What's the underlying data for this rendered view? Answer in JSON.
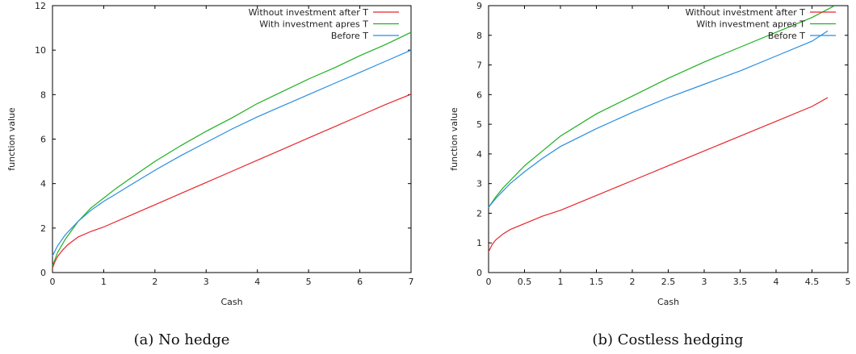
{
  "colors": {
    "red": "#e8262b",
    "green": "#21b021",
    "blue": "#2a8ee0"
  },
  "chart_data": [
    {
      "type": "line",
      "caption": "(a) No hedge",
      "xlabel": "Cash",
      "ylabel": "function value",
      "xlim": [
        0,
        7
      ],
      "ylim": [
        0,
        12
      ],
      "x_ticks": [
        "0",
        "1",
        "2",
        "3",
        "4",
        "5",
        "6",
        "7"
      ],
      "y_ticks": [
        "0",
        "2",
        "4",
        "6",
        "8",
        "10",
        "12"
      ],
      "legend": "top-right",
      "grid": false,
      "series": [
        {
          "name": "Without  investment after T",
          "color": "#e8262b",
          "x": [
            0,
            0.05,
            0.1,
            0.2,
            0.3,
            0.5,
            0.75,
            1,
            1.5,
            2,
            2.5,
            3,
            3.5,
            4,
            4.5,
            5,
            5.5,
            6,
            6.5,
            7
          ],
          "y": [
            0.2,
            0.5,
            0.72,
            1.02,
            1.25,
            1.6,
            1.85,
            2.05,
            2.55,
            3.05,
            3.55,
            4.05,
            4.55,
            5.05,
            5.55,
            6.05,
            6.55,
            7.05,
            7.55,
            8.02
          ]
        },
        {
          "name": "With investment apres T",
          "color": "#21b021",
          "x": [
            0,
            0.1,
            0.25,
            0.5,
            0.75,
            1,
            1.25,
            1.5,
            2,
            2.5,
            3,
            3.5,
            4,
            4.5,
            5,
            5.5,
            6,
            6.5,
            7
          ],
          "y": [
            0.3,
            0.9,
            1.5,
            2.3,
            2.9,
            3.35,
            3.8,
            4.2,
            5.0,
            5.7,
            6.35,
            6.95,
            7.6,
            8.15,
            8.7,
            9.2,
            9.75,
            10.25,
            10.8
          ]
        },
        {
          "name": "Before T",
          "color": "#2a8ee0",
          "x": [
            0,
            0.1,
            0.25,
            0.5,
            0.75,
            1,
            1.25,
            1.5,
            2,
            2.5,
            3,
            3.5,
            4,
            4.5,
            5,
            5.5,
            6,
            6.5,
            7
          ],
          "y": [
            0.75,
            1.2,
            1.7,
            2.3,
            2.8,
            3.2,
            3.55,
            3.9,
            4.6,
            5.25,
            5.85,
            6.45,
            7.0,
            7.5,
            8.0,
            8.5,
            9.0,
            9.5,
            10.0
          ]
        }
      ]
    },
    {
      "type": "line",
      "caption": "(b) Costless hedging",
      "xlabel": "Cash",
      "ylabel": "function value",
      "xlim": [
        0,
        5
      ],
      "ylim": [
        0,
        9
      ],
      "x_ticks": [
        "0",
        "0.5",
        "1",
        "1.5",
        "2",
        "2.5",
        "3",
        "3.5",
        "4",
        "4.5",
        "5"
      ],
      "y_ticks": [
        "0",
        "1",
        "2",
        "3",
        "4",
        "5",
        "6",
        "7",
        "8",
        "9"
      ],
      "legend": "top-right",
      "grid": false,
      "series": [
        {
          "name": "Without  investment after T",
          "color": "#e8262b",
          "x": [
            0,
            0.05,
            0.1,
            0.2,
            0.3,
            0.5,
            0.75,
            1,
            1.5,
            2,
            2.5,
            3,
            3.5,
            4,
            4.5,
            4.72
          ],
          "y": [
            0.7,
            0.95,
            1.1,
            1.3,
            1.45,
            1.65,
            1.9,
            2.1,
            2.6,
            3.1,
            3.6,
            4.1,
            4.6,
            5.1,
            5.6,
            5.9
          ]
        },
        {
          "name": "With investment apres T",
          "color": "#21b021",
          "x": [
            0,
            0.1,
            0.2,
            0.3,
            0.5,
            0.75,
            1,
            1.5,
            2,
            2.5,
            3,
            3.5,
            4,
            4.5,
            4.8
          ],
          "y": [
            2.2,
            2.55,
            2.85,
            3.1,
            3.6,
            4.1,
            4.6,
            5.35,
            5.95,
            6.55,
            7.1,
            7.6,
            8.1,
            8.6,
            8.98
          ]
        },
        {
          "name": "Before T",
          "color": "#2a8ee0",
          "x": [
            0,
            0.1,
            0.2,
            0.3,
            0.5,
            0.75,
            1,
            1.5,
            2,
            2.5,
            3,
            3.5,
            4,
            4.5,
            4.72
          ],
          "y": [
            2.2,
            2.5,
            2.75,
            3.0,
            3.4,
            3.85,
            4.25,
            4.85,
            5.4,
            5.9,
            6.35,
            6.8,
            7.3,
            7.8,
            8.15
          ]
        }
      ]
    }
  ]
}
